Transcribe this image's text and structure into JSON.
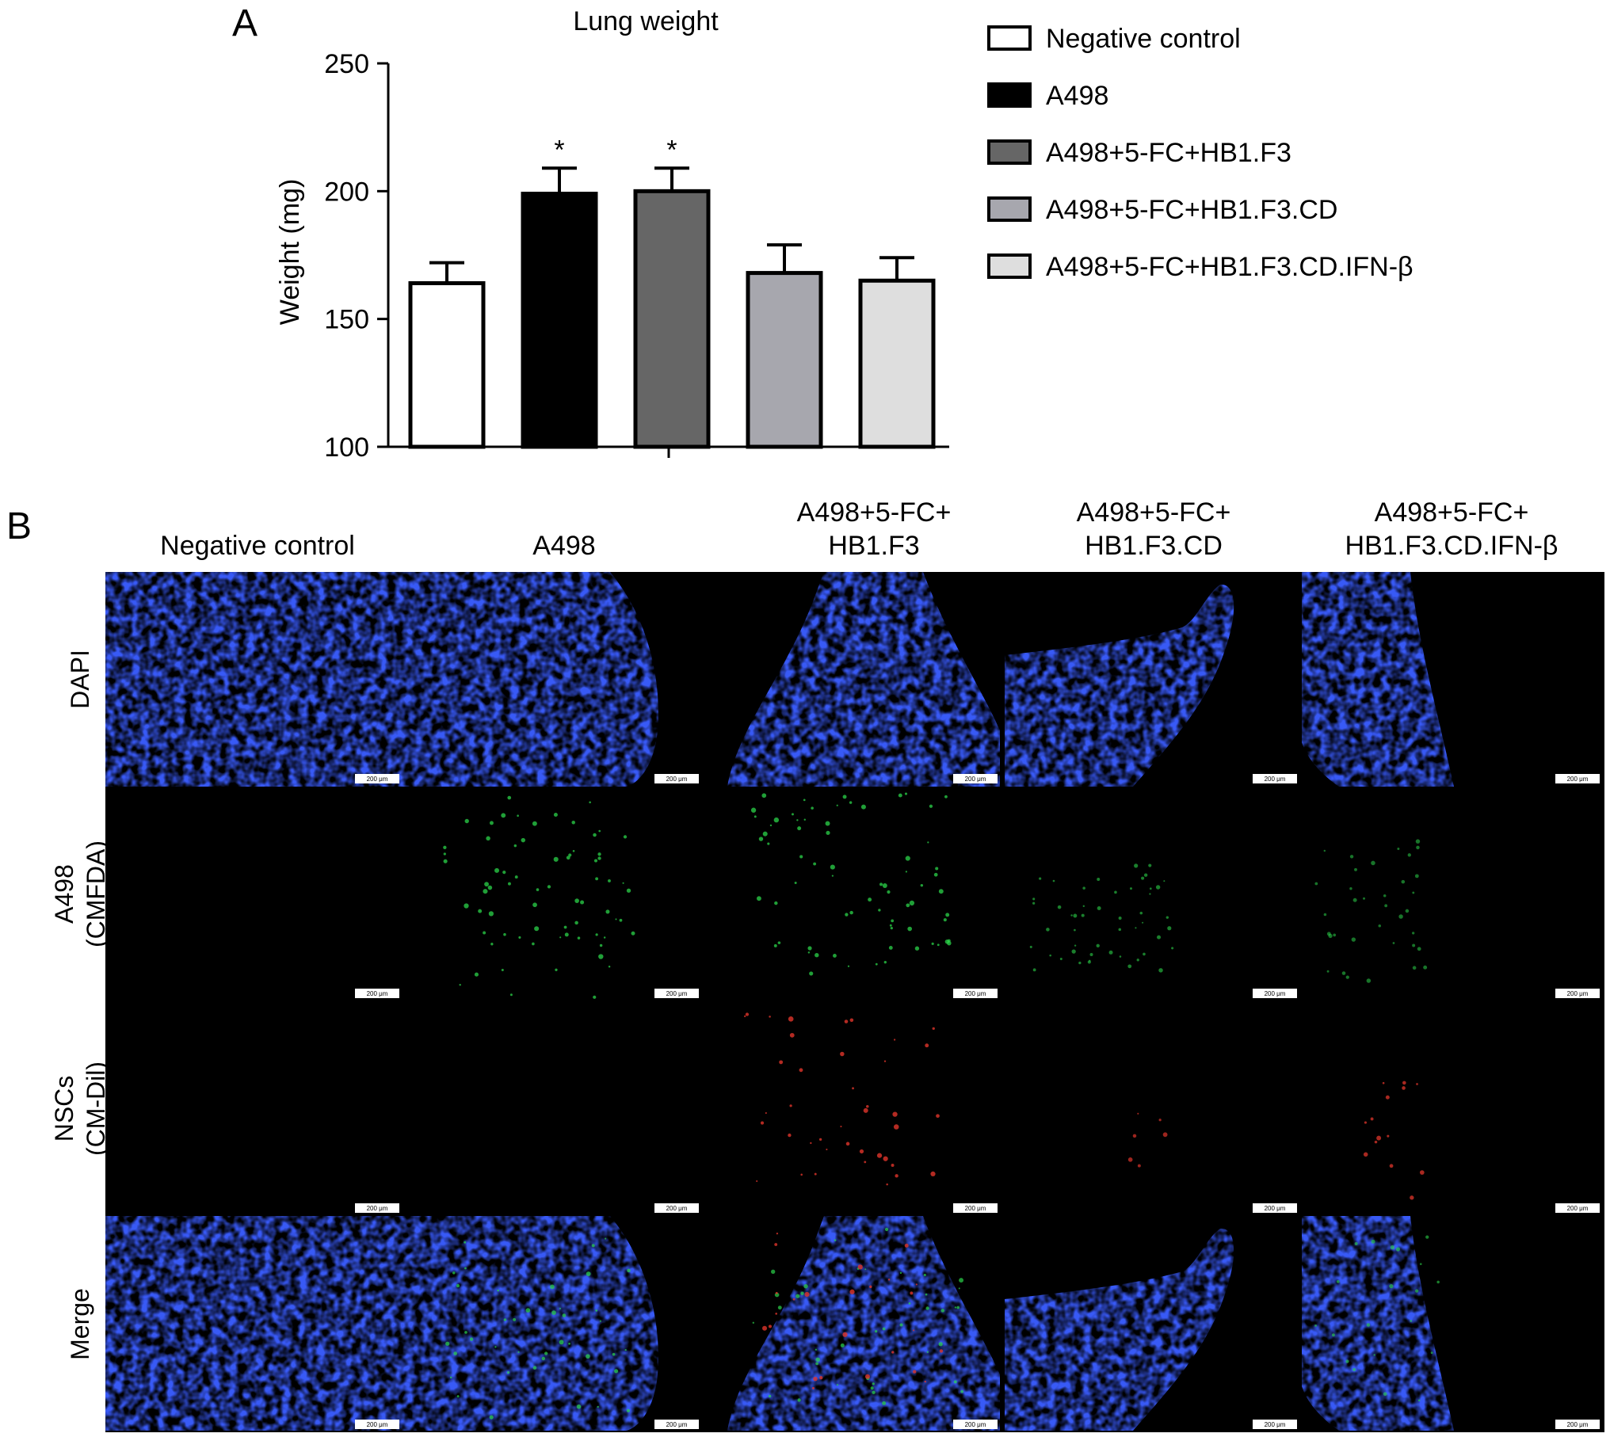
{
  "panel_a_label": "A",
  "panel_b_label": "B",
  "chart_data": {
    "type": "bar",
    "title": "Lung weight",
    "xlabel": "",
    "ylabel": "Weight (mg)",
    "ylim": [
      100,
      250
    ],
    "yticks": [
      100,
      150,
      200,
      250
    ],
    "grid": false,
    "legend_position": "right",
    "categories": [
      "Negative control",
      "A498",
      "A498+5-FC+HB1.F3",
      "A498+5-FC+HB1.F3.CD",
      "A498+5-FC+HB1.F3.CD.IFN-β"
    ],
    "values": [
      164,
      199,
      200,
      168,
      165
    ],
    "errors": [
      8,
      10,
      9,
      11,
      9
    ],
    "annotations": [
      "",
      "*",
      "*",
      "",
      ""
    ],
    "colors": [
      "#ffffff",
      "#000000",
      "#666666",
      "#a7a7ae",
      "#dedede"
    ]
  },
  "panel_b": {
    "column_headers": [
      [
        "Negative control"
      ],
      [
        "A498"
      ],
      [
        "A498+5-FC+",
        "HB1.F3"
      ],
      [
        "A498+5-FC+",
        "HB1.F3.CD"
      ],
      [
        "A498+5-FC+",
        "HB1.F3.CD.IFN-β"
      ]
    ],
    "row_labels": [
      [
        "DAPI"
      ],
      [
        "A498",
        "(CMFDA)"
      ],
      [
        "NSCs",
        "(CM-Dil)"
      ],
      [
        "Merge"
      ]
    ],
    "scale_bar_text": "200 μm",
    "channel_colors": {
      "dapi": "#1b2fd6",
      "cmfda": "#2bd44a",
      "cmdil": "#e0352b",
      "background": "#000000"
    }
  }
}
